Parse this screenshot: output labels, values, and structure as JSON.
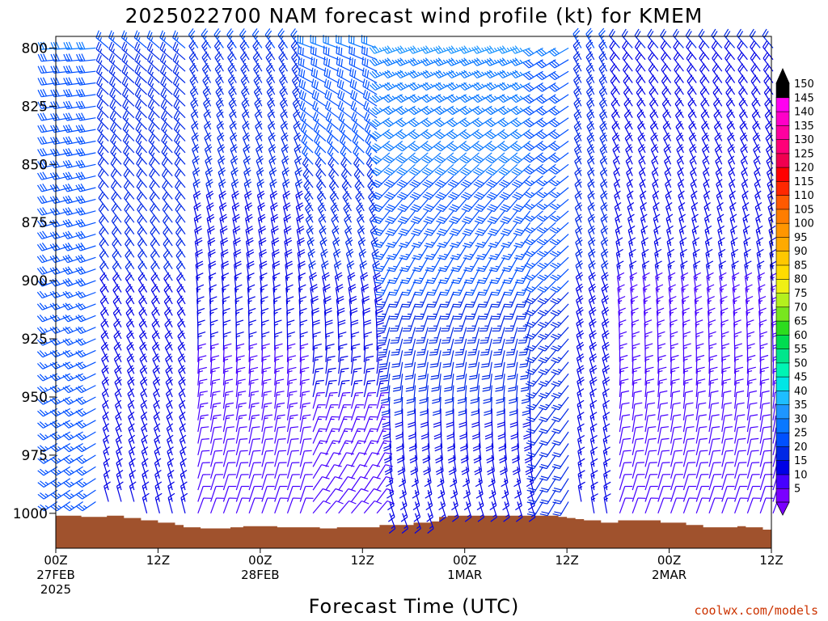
{
  "chart_data": {
    "type": "wind-barb-time-height",
    "title": "2025022700 NAM forecast wind profile (kt) for KMEM",
    "xlabel": "Forecast Time (UTC)",
    "credit": "coolwx.com/models",
    "y_axis": {
      "label": "",
      "inverted": true,
      "range": [
        795,
        1015
      ],
      "ticks": [
        {
          "value": 800,
          "label": "800"
        },
        {
          "value": 825,
          "label": "825"
        },
        {
          "value": 850,
          "label": "850"
        },
        {
          "value": 875,
          "label": "875"
        },
        {
          "value": 900,
          "label": "900"
        },
        {
          "value": 925,
          "label": "925"
        },
        {
          "value": 950,
          "label": "950"
        },
        {
          "value": 975,
          "label": "975"
        },
        {
          "value": 1000,
          "label": "1000"
        }
      ]
    },
    "x_axis": {
      "range_hours": [
        0,
        84
      ],
      "ticks": [
        {
          "hour": 0,
          "lines": [
            "00Z",
            "27FEB",
            "2025"
          ]
        },
        {
          "hour": 12,
          "lines": [
            "12Z"
          ]
        },
        {
          "hour": 24,
          "lines": [
            "00Z",
            "28FEB"
          ]
        },
        {
          "hour": 36,
          "lines": [
            "12Z"
          ]
        },
        {
          "hour": 48,
          "lines": [
            "00Z",
            "1MAR"
          ]
        },
        {
          "hour": 60,
          "lines": [
            "12Z"
          ]
        },
        {
          "hour": 72,
          "lines": [
            "00Z",
            "2MAR"
          ]
        },
        {
          "hour": 84,
          "lines": [
            "12Z"
          ]
        }
      ]
    },
    "surface_pressure": [
      {
        "hour": 0,
        "p": 1001
      },
      {
        "hour": 3,
        "p": 1001.5
      },
      {
        "hour": 6,
        "p": 1001
      },
      {
        "hour": 8,
        "p": 1002
      },
      {
        "hour": 10,
        "p": 1003
      },
      {
        "hour": 12,
        "p": 1004
      },
      {
        "hour": 14,
        "p": 1005
      },
      {
        "hour": 15,
        "p": 1006
      },
      {
        "hour": 17,
        "p": 1006.5
      },
      {
        "hour": 20,
        "p": 1006.5
      },
      {
        "hour": 20.5,
        "p": 1006
      },
      {
        "hour": 22,
        "p": 1005.5
      },
      {
        "hour": 24,
        "p": 1005.5
      },
      {
        "hour": 26,
        "p": 1006
      },
      {
        "hour": 30,
        "p": 1006
      },
      {
        "hour": 31,
        "p": 1006.5
      },
      {
        "hour": 33,
        "p": 1006
      },
      {
        "hour": 36,
        "p": 1006
      },
      {
        "hour": 38,
        "p": 1005
      },
      {
        "hour": 40,
        "p": 1005
      },
      {
        "hour": 42,
        "p": 1004
      },
      {
        "hour": 44,
        "p": 1003.5
      },
      {
        "hour": 45,
        "p": 1001.5
      },
      {
        "hour": 46,
        "p": 1001
      },
      {
        "hour": 50,
        "p": 1001
      },
      {
        "hour": 56,
        "p": 1001
      },
      {
        "hour": 57,
        "p": 1001
      },
      {
        "hour": 59,
        "p": 1001.5
      },
      {
        "hour": 60,
        "p": 1002
      },
      {
        "hour": 61,
        "p": 1002.5
      },
      {
        "hour": 62,
        "p": 1003
      },
      {
        "hour": 64,
        "p": 1004
      },
      {
        "hour": 66,
        "p": 1003
      },
      {
        "hour": 70,
        "p": 1003
      },
      {
        "hour": 71,
        "p": 1004
      },
      {
        "hour": 74,
        "p": 1005
      },
      {
        "hour": 76,
        "p": 1006
      },
      {
        "hour": 78,
        "p": 1006
      },
      {
        "hour": 80,
        "p": 1005.5
      },
      {
        "hour": 81,
        "p": 1006
      },
      {
        "hour": 83,
        "p": 1007
      },
      {
        "hour": 84,
        "p": 1008
      }
    ],
    "wind_levels_hpa": [
      800,
      805,
      810,
      815,
      820,
      825,
      830,
      835,
      840,
      845,
      850,
      855,
      860,
      865,
      870,
      875,
      880,
      885,
      890,
      895,
      900,
      905,
      910,
      915,
      920,
      925,
      930,
      935,
      940,
      945,
      950,
      955,
      960,
      965,
      970,
      975,
      980,
      985,
      990,
      995,
      1000
    ],
    "wind_times_hours": [
      0,
      1.5,
      3,
      4.5,
      6,
      7.5,
      9,
      10.5,
      12,
      13.5,
      15,
      16.5,
      18,
      19.5,
      21,
      22.5,
      24,
      25.5,
      27,
      28.5,
      30,
      31.5,
      33,
      34.5,
      36,
      37.5,
      39,
      40.5,
      42,
      43.5,
      45,
      46.5,
      48,
      49.5,
      51,
      52.5,
      54,
      55.5,
      57,
      58.5,
      60,
      61.5,
      63,
      64.5,
      66,
      67.5,
      69,
      70.5,
      72,
      73.5,
      75,
      76.5,
      78,
      79.5,
      81,
      82.5,
      84
    ],
    "wind_regimes": [
      {
        "from_hour": 0,
        "to_hour": 6,
        "p_top": 800,
        "p_bottom": 1000,
        "dir_top": 265,
        "dir_bottom": 235,
        "spd_top": 30,
        "spd_bottom": 25
      },
      {
        "from_hour": 6,
        "to_hour": 16,
        "p_top": 800,
        "p_bottom": 1000,
        "dir_top": 310,
        "dir_bottom": 345,
        "spd_top": 25,
        "spd_bottom": 15
      },
      {
        "from_hour": 16,
        "to_hour": 29,
        "p_top": 800,
        "p_bottom": 1000,
        "dir_top": 325,
        "dir_bottom": 20,
        "spd_top": 25,
        "spd_bottom": 10
      },
      {
        "from_hour": 29,
        "to_hour": 38,
        "p_top": 800,
        "p_bottom": 1000,
        "dir_top": 290,
        "dir_bottom": 40,
        "spd_top": 30,
        "spd_bottom": 10
      },
      {
        "from_hour": 38,
        "to_hour": 56,
        "p_top": 800,
        "p_bottom": 1000,
        "dir_top": 250,
        "dir_bottom": 160,
        "spd_top": 35,
        "spd_bottom": 15
      },
      {
        "from_hour": 56,
        "to_hour": 61,
        "p_top": 800,
        "p_bottom": 1000,
        "dir_top": 240,
        "dir_bottom": 210,
        "spd_top": 30,
        "spd_bottom": 20
      },
      {
        "from_hour": 61,
        "to_hour": 66,
        "p_top": 800,
        "p_bottom": 1000,
        "dir_top": 330,
        "dir_bottom": 350,
        "spd_top": 25,
        "spd_bottom": 15
      },
      {
        "from_hour": 66,
        "to_hour": 84,
        "p_top": 800,
        "p_bottom": 1000,
        "dir_top": 320,
        "dir_bottom": 20,
        "spd_top": 20,
        "spd_bottom": 10
      }
    ],
    "colorbar": {
      "levels": [
        5,
        10,
        15,
        20,
        25,
        30,
        35,
        40,
        45,
        50,
        55,
        60,
        65,
        70,
        75,
        80,
        85,
        90,
        95,
        100,
        105,
        110,
        115,
        120,
        125,
        130,
        135,
        140,
        145,
        150
      ],
      "colors": [
        "#7a00ff",
        "#4600ff",
        "#0000e6",
        "#0028e6",
        "#0050ff",
        "#0a78ff",
        "#1e96ff",
        "#1ebeff",
        "#00e6e6",
        "#00f5b4",
        "#00e68c",
        "#00dc50",
        "#2ddc1e",
        "#78e61e",
        "#b4f01e",
        "#f0f014",
        "#ffdc00",
        "#ffc800",
        "#ffaa00",
        "#ff9600",
        "#ff7d00",
        "#ff5a00",
        "#ff2800",
        "#ff0000",
        "#f00050",
        "#ff0078",
        "#ff00a0",
        "#ff00c8",
        "#ff00f0",
        "#000000"
      ],
      "extend_below_color": "#7a00ff",
      "extend_above_color": "#000000"
    },
    "grid": false,
    "ground_color": "#a0522d"
  }
}
